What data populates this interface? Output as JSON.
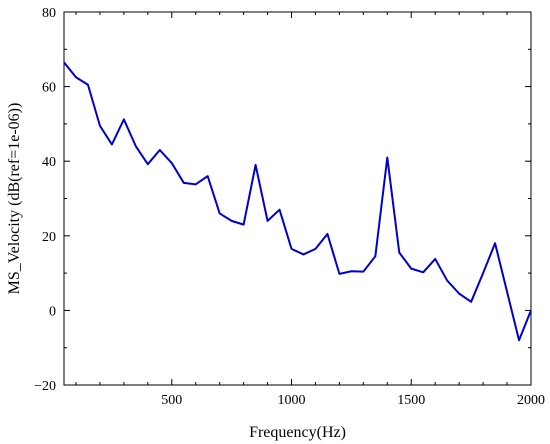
{
  "chart_data": {
    "type": "line",
    "xlabel": "Frequency(Hz)",
    "ylabel": "MS_Velocity (dB(ref=1e-06))",
    "xlim": [
      50,
      2000
    ],
    "ylim": [
      -20,
      80
    ],
    "xticks": [
      500,
      1000,
      1500,
      2000
    ],
    "yticks": [
      -20,
      0,
      20,
      40,
      60,
      80
    ],
    "grid": false,
    "series": [
      {
        "color": "#0000cc",
        "x": [
          50,
          100,
          150,
          200,
          250,
          300,
          350,
          400,
          450,
          500,
          550,
          600,
          650,
          700,
          750,
          800,
          850,
          900,
          950,
          1000,
          1050,
          1100,
          1150,
          1200,
          1250,
          1300,
          1350,
          1400,
          1450,
          1500,
          1550,
          1600,
          1650,
          1700,
          1750,
          1800,
          1850,
          1900,
          1950,
          2000
        ],
        "y": [
          66.5,
          62.5,
          60.5,
          49.5,
          44.5,
          51.2,
          44.0,
          39.2,
          43.0,
          39.5,
          34.2,
          33.8,
          36.0,
          26.0,
          24.0,
          23.0,
          39.0,
          24.0,
          27.0,
          16.5,
          15.0,
          16.5,
          20.5,
          9.8,
          10.5,
          10.4,
          14.5,
          41.0,
          15.5,
          11.2,
          10.2,
          13.8,
          8.0,
          4.5,
          2.3,
          10.0,
          18.0,
          5.0,
          -8.0,
          0.0
        ]
      }
    ]
  }
}
